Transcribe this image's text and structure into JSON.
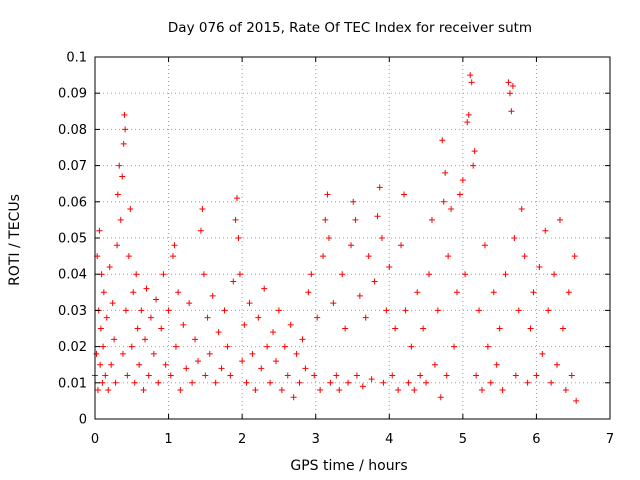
{
  "chart_data": {
    "type": "scatter",
    "title": "Day 076 of 2015, Rate Of TEC Index for receiver sutm",
    "xlabel": "GPS time / hours",
    "ylabel": "ROTI / TECUs",
    "xlim": [
      0,
      7
    ],
    "ylim": [
      0,
      0.1
    ],
    "x_ticks": [
      0,
      1,
      2,
      3,
      4,
      5,
      6,
      7
    ],
    "x_tick_labels": [
      "0",
      "1",
      "2",
      "3",
      "4",
      "5",
      "6",
      "7"
    ],
    "y_ticks": [
      0,
      0.01,
      0.02,
      0.03,
      0.04,
      0.05,
      0.06,
      0.07,
      0.08,
      0.09,
      0.1
    ],
    "y_tick_labels": [
      "0",
      "0.01",
      "0.02",
      "0.03",
      "0.04",
      "0.05",
      "0.06",
      "0.07",
      "0.08",
      "0.09",
      "0.1"
    ],
    "grid": true,
    "marker": "+",
    "series": [
      {
        "name": "ROTI",
        "color": "#ff0000",
        "points": [
          [
            0.0,
            0.012
          ],
          [
            0.02,
            0.018
          ],
          [
            0.03,
            0.045
          ],
          [
            0.04,
            0.008
          ],
          [
            0.05,
            0.03
          ],
          [
            0.06,
            0.052
          ],
          [
            0.07,
            0.015
          ],
          [
            0.08,
            0.025
          ],
          [
            0.09,
            0.04
          ],
          [
            0.1,
            0.01
          ],
          [
            0.11,
            0.02
          ],
          [
            0.12,
            0.035
          ],
          [
            0.14,
            0.012
          ],
          [
            0.16,
            0.028
          ],
          [
            0.18,
            0.008
          ],
          [
            0.2,
            0.042
          ],
          [
            0.22,
            0.015
          ],
          [
            0.24,
            0.032
          ],
          [
            0.26,
            0.022
          ],
          [
            0.28,
            0.01
          ],
          [
            0.3,
            0.048
          ],
          [
            0.31,
            0.062
          ],
          [
            0.33,
            0.07
          ],
          [
            0.35,
            0.055
          ],
          [
            0.37,
            0.067
          ],
          [
            0.38,
            0.018
          ],
          [
            0.39,
            0.076
          ],
          [
            0.4,
            0.084
          ],
          [
            0.41,
            0.08
          ],
          [
            0.42,
            0.03
          ],
          [
            0.44,
            0.012
          ],
          [
            0.46,
            0.045
          ],
          [
            0.48,
            0.058
          ],
          [
            0.5,
            0.02
          ],
          [
            0.52,
            0.035
          ],
          [
            0.54,
            0.01
          ],
          [
            0.56,
            0.04
          ],
          [
            0.58,
            0.025
          ],
          [
            0.6,
            0.015
          ],
          [
            0.63,
            0.03
          ],
          [
            0.66,
            0.008
          ],
          [
            0.68,
            0.022
          ],
          [
            0.7,
            0.036
          ],
          [
            0.73,
            0.012
          ],
          [
            0.76,
            0.028
          ],
          [
            0.8,
            0.018
          ],
          [
            0.83,
            0.033
          ],
          [
            0.86,
            0.01
          ],
          [
            0.9,
            0.025
          ],
          [
            0.93,
            0.04
          ],
          [
            0.96,
            0.015
          ],
          [
            1.0,
            0.03
          ],
          [
            1.03,
            0.012
          ],
          [
            1.06,
            0.045
          ],
          [
            1.08,
            0.048
          ],
          [
            1.1,
            0.02
          ],
          [
            1.13,
            0.035
          ],
          [
            1.16,
            0.008
          ],
          [
            1.2,
            0.026
          ],
          [
            1.24,
            0.014
          ],
          [
            1.28,
            0.032
          ],
          [
            1.32,
            0.01
          ],
          [
            1.36,
            0.022
          ],
          [
            1.4,
            0.016
          ],
          [
            1.44,
            0.052
          ],
          [
            1.46,
            0.058
          ],
          [
            1.48,
            0.04
          ],
          [
            1.5,
            0.012
          ],
          [
            1.53,
            0.028
          ],
          [
            1.56,
            0.018
          ],
          [
            1.6,
            0.034
          ],
          [
            1.64,
            0.01
          ],
          [
            1.68,
            0.024
          ],
          [
            1.72,
            0.014
          ],
          [
            1.76,
            0.03
          ],
          [
            1.8,
            0.02
          ],
          [
            1.84,
            0.012
          ],
          [
            1.88,
            0.038
          ],
          [
            1.91,
            0.055
          ],
          [
            1.93,
            0.061
          ],
          [
            1.95,
            0.05
          ],
          [
            1.97,
            0.04
          ],
          [
            2.0,
            0.016
          ],
          [
            2.03,
            0.026
          ],
          [
            2.06,
            0.01
          ],
          [
            2.1,
            0.032
          ],
          [
            2.14,
            0.018
          ],
          [
            2.18,
            0.008
          ],
          [
            2.22,
            0.028
          ],
          [
            2.26,
            0.014
          ],
          [
            2.3,
            0.036
          ],
          [
            2.34,
            0.02
          ],
          [
            2.38,
            0.01
          ],
          [
            2.42,
            0.024
          ],
          [
            2.46,
            0.016
          ],
          [
            2.5,
            0.03
          ],
          [
            2.54,
            0.008
          ],
          [
            2.58,
            0.02
          ],
          [
            2.62,
            0.012
          ],
          [
            2.66,
            0.026
          ],
          [
            2.7,
            0.006
          ],
          [
            2.74,
            0.018
          ],
          [
            2.78,
            0.01
          ],
          [
            2.82,
            0.022
          ],
          [
            2.86,
            0.014
          ],
          [
            2.9,
            0.035
          ],
          [
            2.94,
            0.04
          ],
          [
            2.98,
            0.012
          ],
          [
            3.02,
            0.028
          ],
          [
            3.06,
            0.008
          ],
          [
            3.1,
            0.045
          ],
          [
            3.13,
            0.055
          ],
          [
            3.16,
            0.062
          ],
          [
            3.18,
            0.05
          ],
          [
            3.2,
            0.01
          ],
          [
            3.24,
            0.032
          ],
          [
            3.28,
            0.012
          ],
          [
            3.32,
            0.008
          ],
          [
            3.36,
            0.04
          ],
          [
            3.4,
            0.025
          ],
          [
            3.44,
            0.01
          ],
          [
            3.48,
            0.048
          ],
          [
            3.51,
            0.06
          ],
          [
            3.54,
            0.055
          ],
          [
            3.56,
            0.012
          ],
          [
            3.6,
            0.034
          ],
          [
            3.64,
            0.009
          ],
          [
            3.68,
            0.028
          ],
          [
            3.72,
            0.045
          ],
          [
            3.76,
            0.011
          ],
          [
            3.8,
            0.038
          ],
          [
            3.84,
            0.056
          ],
          [
            3.87,
            0.064
          ],
          [
            3.9,
            0.05
          ],
          [
            3.92,
            0.01
          ],
          [
            3.96,
            0.03
          ],
          [
            4.0,
            0.042
          ],
          [
            4.04,
            0.012
          ],
          [
            4.08,
            0.025
          ],
          [
            4.12,
            0.008
          ],
          [
            4.16,
            0.048
          ],
          [
            4.2,
            0.062
          ],
          [
            4.22,
            0.03
          ],
          [
            4.26,
            0.01
          ],
          [
            4.3,
            0.02
          ],
          [
            4.34,
            0.008
          ],
          [
            4.38,
            0.035
          ],
          [
            4.42,
            0.012
          ],
          [
            4.46,
            0.025
          ],
          [
            4.5,
            0.01
          ],
          [
            4.54,
            0.04
          ],
          [
            4.58,
            0.055
          ],
          [
            4.62,
            0.015
          ],
          [
            4.66,
            0.03
          ],
          [
            4.7,
            0.006
          ],
          [
            4.72,
            0.077
          ],
          [
            4.74,
            0.06
          ],
          [
            4.76,
            0.068
          ],
          [
            4.78,
            0.012
          ],
          [
            4.8,
            0.045
          ],
          [
            4.84,
            0.058
          ],
          [
            4.88,
            0.02
          ],
          [
            4.92,
            0.035
          ],
          [
            4.96,
            0.062
          ],
          [
            5.0,
            0.066
          ],
          [
            5.03,
            0.04
          ],
          [
            5.06,
            0.082
          ],
          [
            5.08,
            0.084
          ],
          [
            5.1,
            0.095
          ],
          [
            5.12,
            0.093
          ],
          [
            5.14,
            0.07
          ],
          [
            5.16,
            0.074
          ],
          [
            5.18,
            0.012
          ],
          [
            5.22,
            0.03
          ],
          [
            5.26,
            0.008
          ],
          [
            5.3,
            0.048
          ],
          [
            5.34,
            0.02
          ],
          [
            5.38,
            0.01
          ],
          [
            5.42,
            0.035
          ],
          [
            5.46,
            0.015
          ],
          [
            5.5,
            0.025
          ],
          [
            5.54,
            0.008
          ],
          [
            5.58,
            0.04
          ],
          [
            5.62,
            0.093
          ],
          [
            5.64,
            0.09
          ],
          [
            5.66,
            0.085
          ],
          [
            5.68,
            0.092
          ],
          [
            5.7,
            0.05
          ],
          [
            5.72,
            0.012
          ],
          [
            5.76,
            0.03
          ],
          [
            5.8,
            0.058
          ],
          [
            5.84,
            0.045
          ],
          [
            5.88,
            0.01
          ],
          [
            5.92,
            0.025
          ],
          [
            5.96,
            0.035
          ],
          [
            6.0,
            0.012
          ],
          [
            6.04,
            0.042
          ],
          [
            6.08,
            0.018
          ],
          [
            6.12,
            0.052
          ],
          [
            6.16,
            0.03
          ],
          [
            6.2,
            0.01
          ],
          [
            6.24,
            0.04
          ],
          [
            6.28,
            0.015
          ],
          [
            6.32,
            0.055
          ],
          [
            6.36,
            0.025
          ],
          [
            6.4,
            0.008
          ],
          [
            6.44,
            0.035
          ],
          [
            6.48,
            0.012
          ],
          [
            6.52,
            0.045
          ],
          [
            6.54,
            0.005
          ]
        ]
      }
    ]
  }
}
